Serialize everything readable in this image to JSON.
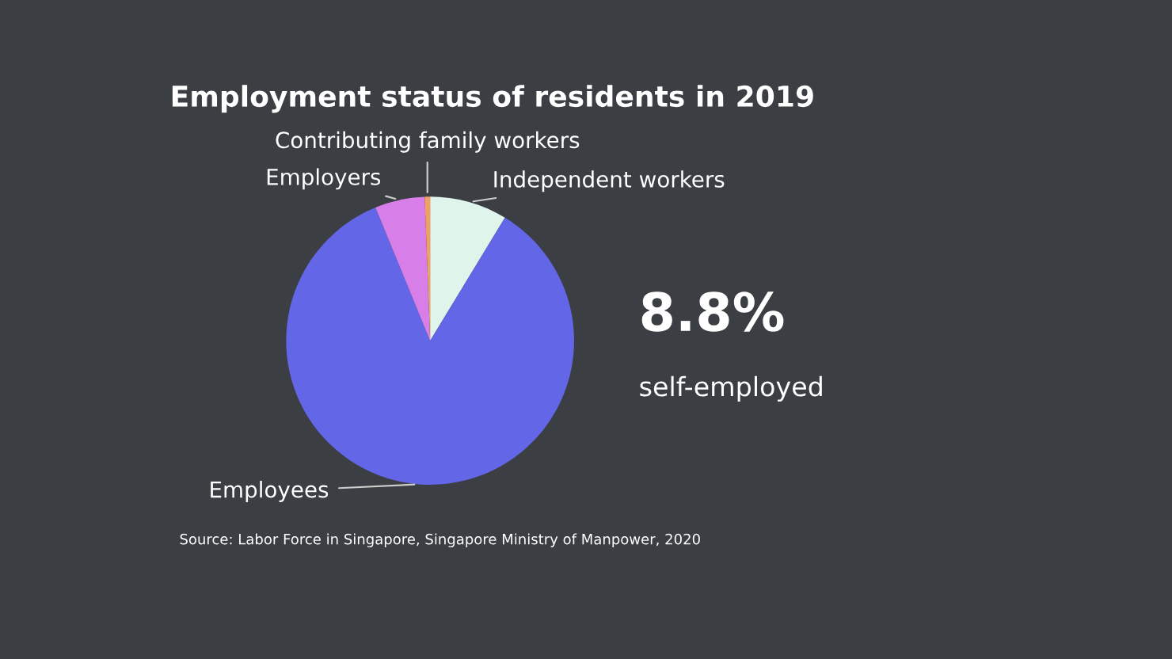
{
  "chart_data": {
    "type": "pie",
    "title": "Employment status of residents in 2019",
    "categories": [
      "Independent workers",
      "Employees",
      "Employers",
      "Contributing family workers"
    ],
    "values": [
      8.7,
      85.1,
      5.6,
      0.6
    ],
    "colors": [
      "#dff5ec",
      "#6366e6",
      "#d77ee8",
      "#f0a060"
    ],
    "annotations": [
      "8.8%",
      "self-employed",
      "Source: Labor Force in Singapore, Singapore Ministry of Manpower, 2020"
    ]
  }
}
